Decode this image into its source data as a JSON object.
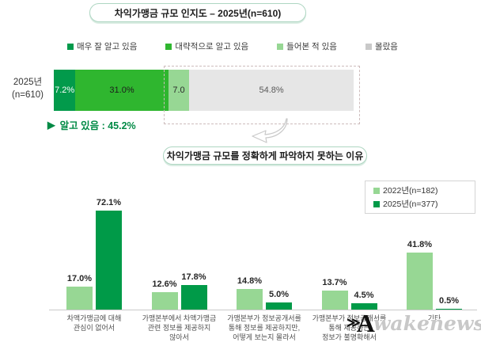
{
  "section1": {
    "row_label_lines": [
      "2025년",
      "(n=610)"
    ],
    "summary_marker": "▶",
    "summary": "알고 있음 : 45.2%"
  },
  "watermark": {
    "chevrons": "≫",
    "letter": "A",
    "script": "wakenews"
  },
  "chart_data": [
    {
      "type": "bar",
      "subtype": "horizontal-stacked",
      "title": "차익가맹금 규모 인지도 – 2025년(n=610)",
      "categories": [
        "2025년(n=610)"
      ],
      "xlim": [
        0,
        100
      ],
      "series": [
        {
          "name": "매우 잘 알고 있음",
          "value": 7.2,
          "label": "7.2%",
          "color": "#029a4b",
          "text_color": "#ffffff",
          "hatched": false
        },
        {
          "name": "대략적으로 알고 있음",
          "value": 31.0,
          "label": "31.0%",
          "color": "#2fb62f",
          "text_color": "#1c1c1c",
          "hatched": false
        },
        {
          "name": "들어본 적 있음",
          "value": 7.0,
          "label": "7.0",
          "color": "#97d794",
          "text_color": "#2a2a2a",
          "hatched": false
        },
        {
          "name": "몰랐음",
          "value": 54.8,
          "label": "54.8%",
          "color": "#e6e6e6",
          "text_color": "#5a5a5a",
          "hatched": true
        }
      ],
      "annotation": "알고 있음 : 45.2%",
      "highlight_note": "dashed box encloses 들어본 적 있음 + 몰랐음 (61.8%) with arrow to reasons chart"
    },
    {
      "type": "bar",
      "title": "차익가맹금 규모를 정확하게 파악하지 못하는 이유",
      "categories": [
        "차액가맹금에 대해 관심이 없어서",
        "가맹본부에서 차액가맹금 관련 정보를 제공하지 않아서",
        "가맹본부가 정보공개서를 통해 정보를 제공하지만, 어떻게 보는지 몰라서",
        "가맹본부가 정보공개서를 통해 제공하는 정보가 불명확해서",
        "기타"
      ],
      "category_label_lines": [
        [
          "차액가맹금에 대해",
          "관심이 없어서"
        ],
        [
          "가맹본부에서 차액가맹금",
          "관련 정보를 제공하지",
          "않아서"
        ],
        [
          "가맹본부가 정보공개서를",
          "통해 정보를 제공하지만,",
          "어떻게 보는지 몰라서"
        ],
        [
          "가맹본부가 정보공개서를",
          "통해 제공하는",
          "정보가 불명확해서"
        ],
        [
          "기타"
        ]
      ],
      "series": [
        {
          "name": "2022년(n=182)",
          "color": "#97d794",
          "values": [
            17.0,
            12.6,
            14.8,
            13.7,
            41.8
          ],
          "labels": [
            "17.0%",
            "12.6%",
            "14.8%",
            "13.7%",
            "41.8%"
          ]
        },
        {
          "name": "2025년(n=377)",
          "color": "#009a48",
          "values": [
            72.1,
            17.8,
            5.0,
            4.5,
            0.5
          ],
          "labels": [
            "72.1%",
            "17.8%",
            "5.0%",
            "4.5%",
            "0.5%"
          ]
        }
      ],
      "ylim": [
        0,
        80
      ],
      "grid": false,
      "legend_position": "top-right"
    }
  ]
}
